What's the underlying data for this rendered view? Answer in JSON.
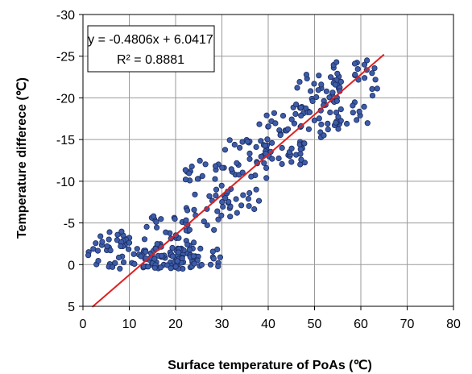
{
  "chart_data": {
    "type": "scatter",
    "title": "",
    "xlabel": "Surface temperature of PoAs (℃)",
    "ylabel": "Temperature differece (℃)",
    "xlim": [
      0,
      80
    ],
    "ylim": [
      5,
      -30
    ],
    "y_inverted": true,
    "grid": true,
    "x_ticks": [
      "0",
      "10",
      "20",
      "30",
      "40",
      "50",
      "60",
      "70",
      "80"
    ],
    "y_ticks": [
      "-30",
      "-25",
      "-20",
      "-15",
      "-10",
      "-5",
      "0",
      "5"
    ],
    "marker_color": "#3d5ca8",
    "marker_edge_color": "#1a2a60",
    "trendline": {
      "color": "#e02020",
      "slope": -0.4806,
      "intercept": 6.0417,
      "x_range": [
        2,
        65
      ],
      "equation": "y = -0.4806x + 6.0417",
      "r_squared": "R² = 0.8881"
    },
    "clusters": [
      {
        "x_min": 1,
        "x_max": 12,
        "y_min": -4,
        "y_max": 0.5,
        "count": 45
      },
      {
        "x_min": 12,
        "x_max": 24,
        "y_min": -2,
        "y_max": 0.5,
        "count": 70
      },
      {
        "x_min": 13,
        "x_max": 25,
        "y_min": -6,
        "y_max": -1.5,
        "count": 35
      },
      {
        "x_min": 22,
        "x_max": 32,
        "y_min": -12.5,
        "y_max": -4,
        "count": 45
      },
      {
        "x_min": 20,
        "x_max": 30,
        "y_min": -2,
        "y_max": 0.3,
        "count": 25
      },
      {
        "x_min": 30,
        "x_max": 40,
        "y_min": -15,
        "y_max": -6,
        "count": 45
      },
      {
        "x_min": 38,
        "x_max": 48,
        "y_min": -19,
        "y_max": -12,
        "count": 50
      },
      {
        "x_min": 46,
        "x_max": 56,
        "y_min": -23,
        "y_max": -15,
        "count": 55
      },
      {
        "x_min": 54,
        "x_max": 64,
        "y_min": -24.5,
        "y_max": -16,
        "count": 40
      }
    ]
  }
}
